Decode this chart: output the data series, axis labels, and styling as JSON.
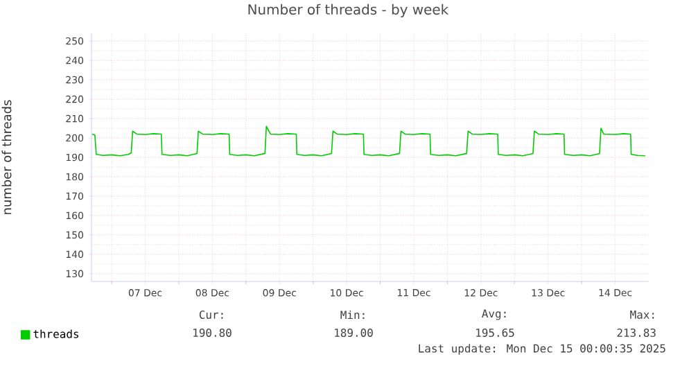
{
  "chart_data": {
    "type": "line",
    "title": "Number of threads - by week",
    "ylabel": "number of threads",
    "xlim": [
      "2025-12-06T16:48",
      "2025-12-15T00:00"
    ],
    "xticks": [
      {
        "value": "2025-12-07T00:00",
        "label": null
      },
      {
        "value": "2025-12-07T12:00",
        "label": "07 Dec"
      },
      {
        "value": "2025-12-08T00:00",
        "label": null
      },
      {
        "value": "2025-12-08T12:00",
        "label": "08 Dec"
      },
      {
        "value": "2025-12-09T00:00",
        "label": null
      },
      {
        "value": "2025-12-09T12:00",
        "label": "09 Dec"
      },
      {
        "value": "2025-12-10T00:00",
        "label": null
      },
      {
        "value": "2025-12-10T12:00",
        "label": "10 Dec"
      },
      {
        "value": "2025-12-11T00:00",
        "label": null
      },
      {
        "value": "2025-12-11T12:00",
        "label": "11 Dec"
      },
      {
        "value": "2025-12-12T00:00",
        "label": null
      },
      {
        "value": "2025-12-12T12:00",
        "label": "12 Dec"
      },
      {
        "value": "2025-12-13T00:00",
        "label": null
      },
      {
        "value": "2025-12-13T12:00",
        "label": "13 Dec"
      },
      {
        "value": "2025-12-14T00:00",
        "label": null
      },
      {
        "value": "2025-12-14T12:00",
        "label": "14 Dec"
      }
    ],
    "ylim": [
      126,
      254
    ],
    "yticks": [
      130,
      140,
      150,
      160,
      170,
      180,
      190,
      200,
      210,
      220,
      230,
      240,
      250
    ],
    "grid": true,
    "legend": "bottom left",
    "marker": "none",
    "line_style": "solid",
    "series": [
      {
        "name": "threads",
        "color": "#00cc00",
        "x": [
          "2025-12-06T17:00",
          "2025-12-06T18:00",
          "2025-12-06T18:30",
          "2025-12-06T21:00",
          "2025-12-07T00:00",
          "2025-12-07T03:00",
          "2025-12-07T06:00",
          "2025-12-07T07:00",
          "2025-12-07T07:30",
          "2025-12-07T09:00",
          "2025-12-07T12:00",
          "2025-12-07T15:00",
          "2025-12-07T17:45",
          "2025-12-07T18:00",
          "2025-12-07T21:00",
          "2025-12-08T00:00",
          "2025-12-08T03:00",
          "2025-12-08T06:30",
          "2025-12-08T07:00",
          "2025-12-08T08:30",
          "2025-12-08T12:00",
          "2025-12-08T15:00",
          "2025-12-08T18:00",
          "2025-12-08T18:12",
          "2025-12-08T21:00",
          "2025-12-09T00:00",
          "2025-12-09T03:00",
          "2025-12-09T06:48",
          "2025-12-09T07:18",
          "2025-12-09T08:48",
          "2025-12-09T12:00",
          "2025-12-09T15:00",
          "2025-12-09T18:00",
          "2025-12-09T18:12",
          "2025-12-09T21:00",
          "2025-12-10T00:00",
          "2025-12-10T03:00",
          "2025-12-10T06:36",
          "2025-12-10T07:06",
          "2025-12-10T08:36",
          "2025-12-10T12:00",
          "2025-12-10T15:00",
          "2025-12-10T18:00",
          "2025-12-10T18:12",
          "2025-12-10T21:00",
          "2025-12-11T00:00",
          "2025-12-11T03:00",
          "2025-12-11T06:54",
          "2025-12-11T07:24",
          "2025-12-11T08:54",
          "2025-12-11T12:00",
          "2025-12-11T15:00",
          "2025-12-11T17:48",
          "2025-12-11T18:00",
          "2025-12-11T21:00",
          "2025-12-12T00:00",
          "2025-12-12T03:00",
          "2025-12-12T06:54",
          "2025-12-12T07:24",
          "2025-12-12T08:54",
          "2025-12-12T12:00",
          "2025-12-12T15:00",
          "2025-12-12T18:00",
          "2025-12-12T18:12",
          "2025-12-12T21:00",
          "2025-12-13T00:00",
          "2025-12-13T03:00",
          "2025-12-13T06:36",
          "2025-12-13T07:06",
          "2025-12-13T08:36",
          "2025-12-13T12:00",
          "2025-12-13T15:00",
          "2025-12-13T17:42",
          "2025-12-13T17:54",
          "2025-12-13T21:00",
          "2025-12-14T00:00",
          "2025-12-14T03:00",
          "2025-12-14T06:24",
          "2025-12-14T06:54",
          "2025-12-14T07:54",
          "2025-12-14T12:00",
          "2025-12-14T15:00",
          "2025-12-14T17:30",
          "2025-12-14T17:42",
          "2025-12-14T20:00",
          "2025-12-14T22:42"
        ],
        "values": [
          202,
          201.5,
          191.5,
          191,
          191.3,
          190.8,
          191.5,
          192.3,
          203.5,
          202,
          201.8,
          202.2,
          202,
          191.5,
          191,
          191.3,
          190.8,
          192,
          203.5,
          202,
          201.8,
          202.2,
          202,
          191.5,
          191,
          191.3,
          190.8,
          192,
          206,
          202,
          201.8,
          202.2,
          202,
          191.5,
          191,
          191.3,
          190.8,
          192,
          203.5,
          202,
          201.8,
          202.2,
          202,
          191.5,
          191,
          191.3,
          190.8,
          192,
          203.5,
          202,
          201.8,
          202.2,
          202,
          191.5,
          191,
          191.3,
          190.8,
          192,
          203.5,
          202,
          201.8,
          202.2,
          202,
          191.5,
          191,
          191.3,
          190.8,
          192,
          203.5,
          202,
          201.8,
          202.2,
          202,
          191.5,
          191,
          191.3,
          190.8,
          192,
          205,
          202,
          201.8,
          202.2,
          202,
          191.5,
          191,
          190.8
        ]
      }
    ],
    "annotations": [
      "Cur:",
      "190.80",
      "Min:",
      "189.00",
      "Avg:",
      "195.65",
      "Max:",
      "213.83",
      "Last update: Mon Dec 15 00:00:35 2025"
    ]
  }
}
